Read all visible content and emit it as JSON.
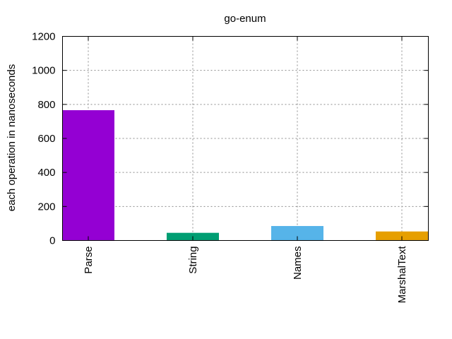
{
  "chart_data": {
    "type": "bar",
    "title": "go-enum",
    "xlabel": "",
    "ylabel": "each operation in nanoseconds",
    "categories": [
      "Parse",
      "String",
      "Names",
      "MarshalText"
    ],
    "values": [
      766,
      45,
      85,
      53
    ],
    "colors": [
      "#9400d3",
      "#009e73",
      "#56b4e9",
      "#e69f00"
    ],
    "ylim": [
      0,
      1200
    ],
    "yticks": [
      0,
      200,
      400,
      600,
      800,
      1000,
      1200
    ],
    "grid": true
  }
}
